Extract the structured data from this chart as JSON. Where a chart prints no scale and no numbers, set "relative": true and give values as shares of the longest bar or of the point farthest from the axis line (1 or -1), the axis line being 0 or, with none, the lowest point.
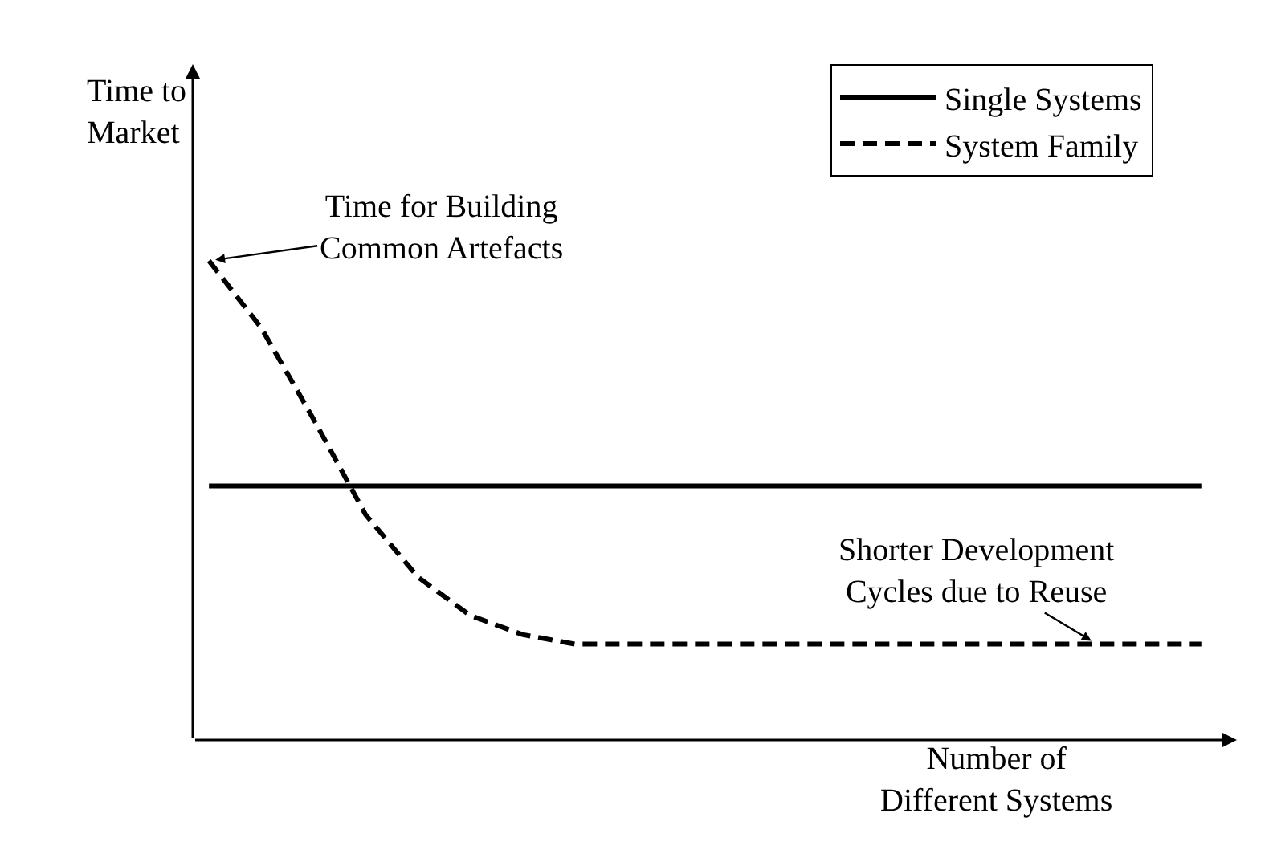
{
  "chart_data": {
    "type": "line",
    "relative": true,
    "xlabel": "Number of\nDifferent Systems",
    "ylabel": "Time to\nMarket",
    "categories": [
      null,
      null,
      null,
      null,
      null,
      null,
      null,
      null,
      null,
      null,
      null,
      null,
      null,
      null,
      null,
      null,
      null,
      null,
      null,
      null
    ],
    "series": [
      {
        "name": "Single Systems",
        "color": "#000000",
        "line_style": "solid",
        "values": [
          0.53,
          0.53,
          0.53,
          0.53,
          0.53,
          0.53,
          0.53,
          0.53,
          0.53,
          0.53,
          0.53,
          0.53,
          0.53,
          0.53,
          0.53,
          0.53,
          0.53,
          0.53,
          0.53,
          0.53
        ]
      },
      {
        "name": "System Family",
        "color": "#000000",
        "line_style": "dashed",
        "values": [
          1.0,
          0.86,
          0.67,
          0.47,
          0.34,
          0.26,
          0.22,
          0.2,
          0.2,
          0.2,
          0.2,
          0.2,
          0.2,
          0.2,
          0.2,
          0.2,
          0.2,
          0.2,
          0.2,
          0.2
        ]
      }
    ],
    "annotations": [
      "Time for Building\nCommon Artefacts",
      "Shorter Development\nCycles due to Reuse"
    ],
    "legend": "top right",
    "grid": false,
    "marker": "none"
  }
}
